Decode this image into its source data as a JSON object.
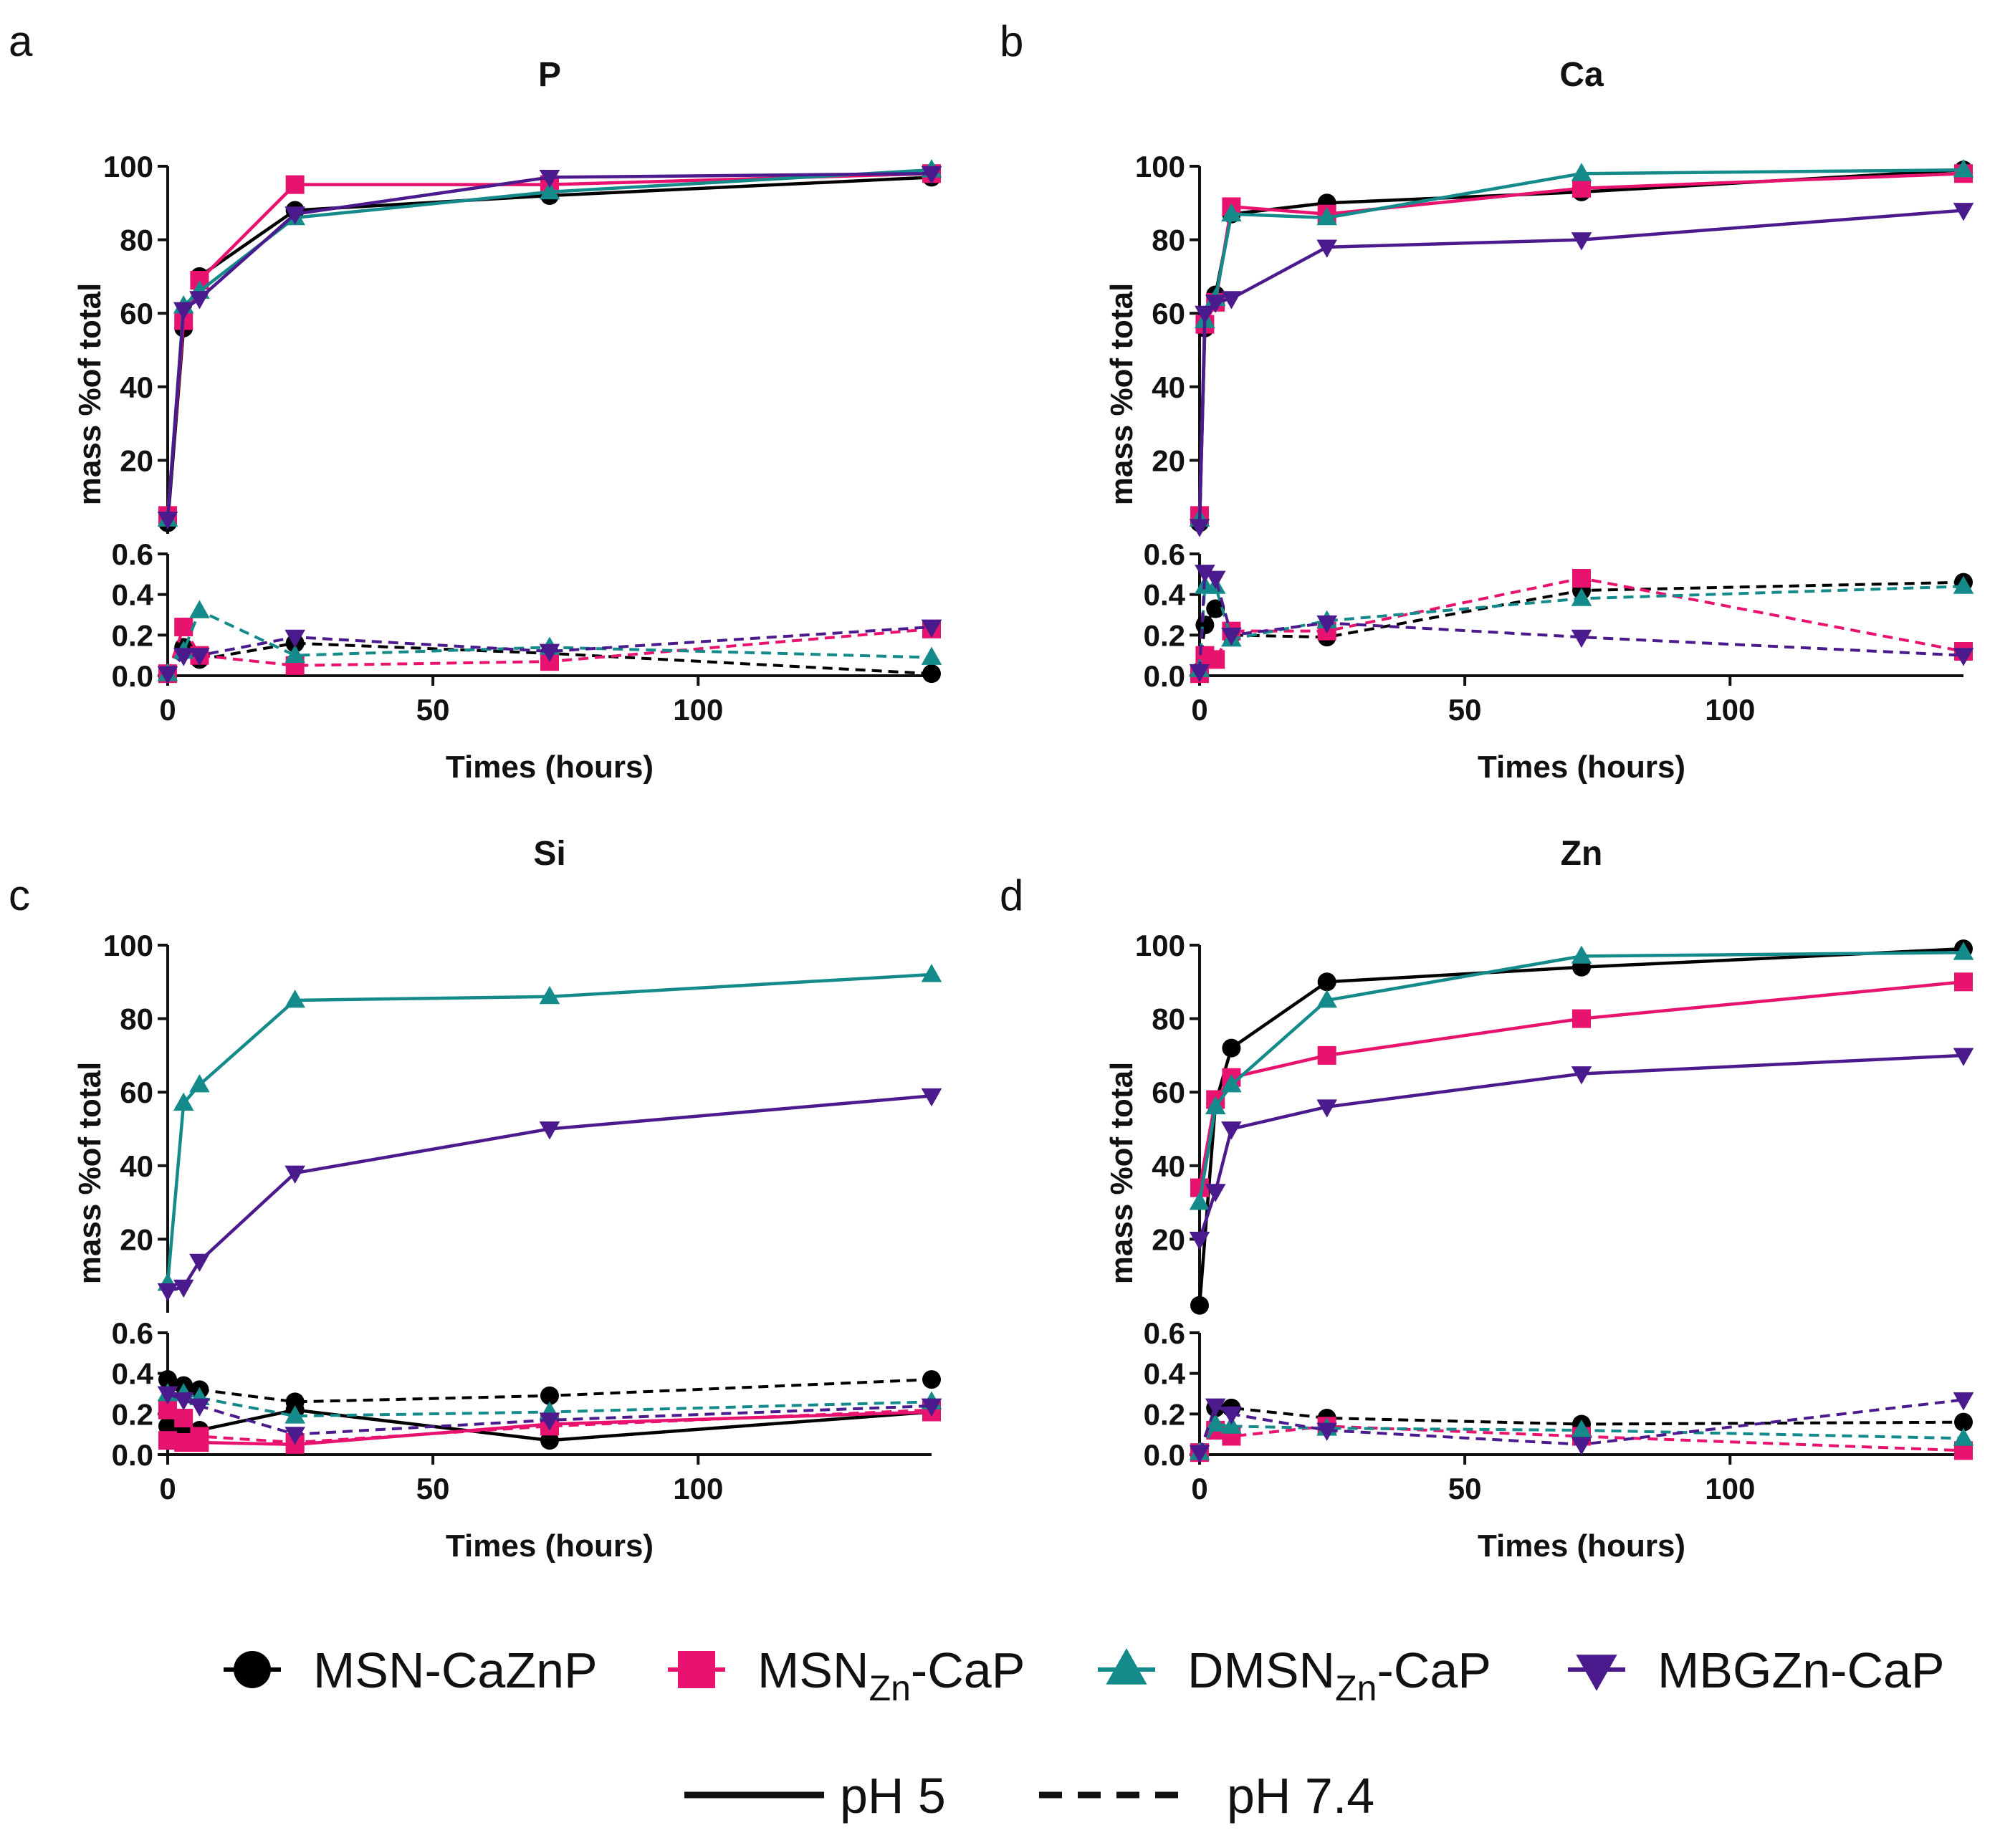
{
  "figure": {
    "colors": {
      "MSN-CaZnP": "#000000",
      "MSNZn-CaP": "#E8136F",
      "DMSNZn-CaP": "#148A8A",
      "MBGZn-CaP": "#4B1A8C"
    },
    "legend": {
      "series": [
        {
          "key": "MSN-CaZnP",
          "label": "MSN-CaZnP",
          "base": "MSN-CaZnP",
          "sub": "",
          "tail": "",
          "marker": "circle"
        },
        {
          "key": "MSNZn-CaP",
          "label": "MSNZn-CaP",
          "base": "MSN",
          "sub": "Zn",
          "tail": "-CaP",
          "marker": "square"
        },
        {
          "key": "DMSNZn-CaP",
          "label": "DMSNZn-CaP",
          "base": "DMSN",
          "sub": "Zn",
          "tail": "-CaP",
          "marker": "triangle-up"
        },
        {
          "key": "MBGZn-CaP",
          "label": "MBGZn-CaP",
          "base": "MBGZn-CaP",
          "sub": "",
          "tail": "",
          "marker": "triangle-down"
        }
      ],
      "ph": [
        {
          "label": "pH 5",
          "style": "solid"
        },
        {
          "label": "pH 7.4",
          "style": "dashed"
        }
      ]
    }
  },
  "chart_data": [
    {
      "panel": "a",
      "title": "P",
      "type": "line",
      "xlabel": "Times (hours)",
      "ylabel": "mass %of total",
      "xlim": [
        0,
        144
      ],
      "xticks": [
        "0",
        "50",
        "100"
      ],
      "ylim_top": [
        0,
        100
      ],
      "yticks_top": [
        "20",
        "40",
        "60",
        "80",
        "100"
      ],
      "ylim_bottom": [
        0,
        0.6
      ],
      "yticks_bottom": [
        "0.0",
        "0.2",
        "0.4",
        "0.6"
      ],
      "x": [
        0,
        3,
        6,
        24,
        72,
        144
      ],
      "series_top": [
        {
          "name": "MSN-CaZnP",
          "ph": "pH 5",
          "values": [
            3,
            56,
            70,
            88,
            92,
            97
          ]
        },
        {
          "name": "MSNZn-CaP",
          "ph": "pH 5",
          "values": [
            5,
            58,
            69,
            95,
            95,
            98
          ]
        },
        {
          "name": "DMSNZn-CaP",
          "ph": "pH 5",
          "values": [
            4,
            62,
            66,
            86,
            93,
            99
          ]
        },
        {
          "name": "MBGZn-CaP",
          "ph": "pH 5",
          "values": [
            4,
            61,
            64,
            87,
            97,
            98
          ]
        }
      ],
      "series_bottom": [
        {
          "name": "MSN-CaZnP",
          "ph": "pH 7.4",
          "values": [
            0.01,
            0.14,
            0.08,
            0.16,
            0.11,
            0.01
          ]
        },
        {
          "name": "MSNZn-CaP",
          "ph": "pH 7.4",
          "values": [
            0.01,
            0.24,
            0.1,
            0.05,
            0.07,
            0.23
          ]
        },
        {
          "name": "DMSNZn-CaP",
          "ph": "pH 7.4",
          "values": [
            0.01,
            0.12,
            0.32,
            0.1,
            0.14,
            0.09
          ]
        },
        {
          "name": "MBGZn-CaP",
          "ph": "pH 7.4",
          "values": [
            0.01,
            0.1,
            0.1,
            0.19,
            0.12,
            0.24
          ]
        }
      ]
    },
    {
      "panel": "b",
      "title": "Ca",
      "type": "line",
      "xlabel": "Times (hours)",
      "ylabel": "mass %of total",
      "xlim": [
        0,
        144
      ],
      "xticks": [
        "0",
        "50",
        "100"
      ],
      "ylim_top": [
        0,
        100
      ],
      "yticks_top": [
        "20",
        "40",
        "60",
        "80",
        "100"
      ],
      "ylim_bottom": [
        0,
        0.6
      ],
      "yticks_bottom": [
        "0.0",
        "0.2",
        "0.4",
        "0.6"
      ],
      "x": [
        0,
        1,
        3,
        6,
        24,
        72,
        144
      ],
      "series_top": [
        {
          "name": "MSN-CaZnP",
          "ph": "pH 5",
          "values": [
            3,
            56,
            65,
            87,
            90,
            93,
            99
          ]
        },
        {
          "name": "MSNZn-CaP",
          "ph": "pH 5",
          "values": [
            5,
            57,
            63,
            89,
            87,
            94,
            98
          ]
        },
        {
          "name": "DMSNZn-CaP",
          "ph": "pH 5",
          "values": [
            4,
            58,
            64,
            87,
            86,
            98,
            99
          ]
        },
        {
          "name": "MBGZn-CaP",
          "ph": "pH 5",
          "values": [
            2,
            60,
            63,
            64,
            78,
            80,
            88
          ]
        }
      ],
      "series_bottom": [
        {
          "name": "MSN-CaZnP",
          "ph": "pH 7.4",
          "values": [
            0.02,
            0.25,
            0.33,
            0.2,
            0.19,
            0.42,
            0.46
          ]
        },
        {
          "name": "MSNZn-CaP",
          "ph": "pH 7.4",
          "values": [
            0.01,
            0.1,
            0.08,
            0.22,
            0.22,
            0.48,
            0.12
          ]
        },
        {
          "name": "DMSNZn-CaP",
          "ph": "pH 7.4",
          "values": [
            0.03,
            0.44,
            0.44,
            0.18,
            0.27,
            0.38,
            0.44
          ]
        },
        {
          "name": "MBGZn-CaP",
          "ph": "pH 7.4",
          "values": [
            0.02,
            0.51,
            0.48,
            0.2,
            0.26,
            0.19,
            0.1
          ]
        }
      ]
    },
    {
      "panel": "c",
      "title": "Si",
      "type": "line",
      "xlabel": "Times (hours)",
      "ylabel": "mass %of total",
      "xlim": [
        0,
        144
      ],
      "xticks": [
        "0",
        "50",
        "100"
      ],
      "ylim_top": [
        0,
        100
      ],
      "yticks_top": [
        "20",
        "40",
        "60",
        "80",
        "100"
      ],
      "ylim_bottom": [
        0,
        0.6
      ],
      "yticks_bottom": [
        "0.0",
        "0.2",
        "0.4",
        "0.6"
      ],
      "x": [
        0,
        3,
        6,
        24,
        72,
        144
      ],
      "series_top": [
        {
          "name": "DMSNZn-CaP",
          "ph": "pH 5",
          "values": [
            8,
            57,
            62,
            85,
            86,
            92
          ]
        },
        {
          "name": "MBGZn-CaP",
          "ph": "pH 5",
          "values": [
            6,
            7,
            14,
            38,
            50,
            59
          ]
        }
      ],
      "series_bottom": [
        {
          "name": "MSN-CaZnP",
          "ph": "pH 5",
          "values": [
            0.14,
            0.13,
            0.12,
            0.22,
            0.07,
            0.21
          ]
        },
        {
          "name": "MSNZn-CaP",
          "ph": "pH 5",
          "values": [
            0.07,
            0.06,
            0.06,
            0.05,
            0.15,
            0.21
          ]
        },
        {
          "name": "MSN-CaZnP",
          "ph": "pH 7.4",
          "values": [
            0.37,
            0.34,
            0.32,
            0.26,
            0.29,
            0.37
          ]
        },
        {
          "name": "MSNZn-CaP",
          "ph": "pH 7.4",
          "values": [
            0.22,
            0.18,
            0.09,
            0.06,
            0.14,
            0.22
          ]
        },
        {
          "name": "DMSNZn-CaP",
          "ph": "pH 7.4",
          "values": [
            0.3,
            0.3,
            0.28,
            0.19,
            0.21,
            0.26
          ]
        },
        {
          "name": "MBGZn-CaP",
          "ph": "pH 7.4",
          "values": [
            0.3,
            0.27,
            0.24,
            0.1,
            0.17,
            0.24
          ]
        }
      ]
    },
    {
      "panel": "d",
      "title": "Zn",
      "type": "line",
      "xlabel": "Times (hours)",
      "ylabel": "mass %of total",
      "xlim": [
        0,
        144
      ],
      "xticks": [
        "0",
        "50",
        "100"
      ],
      "ylim_top": [
        0,
        100
      ],
      "yticks_top": [
        "20",
        "40",
        "60",
        "80",
        "100"
      ],
      "ylim_bottom": [
        0,
        0.6
      ],
      "yticks_bottom": [
        "0.0",
        "0.2",
        "0.4",
        "0.6"
      ],
      "x": [
        0,
        3,
        6,
        24,
        72,
        144
      ],
      "series_top": [
        {
          "name": "MSN-CaZnP",
          "ph": "pH 5",
          "values": [
            2,
            57,
            72,
            90,
            94,
            99
          ]
        },
        {
          "name": "MSNZn-CaP",
          "ph": "pH 5",
          "values": [
            34,
            58,
            64,
            70,
            80,
            90
          ]
        },
        {
          "name": "DMSNZn-CaP",
          "ph": "pH 5",
          "values": [
            30,
            56,
            62,
            85,
            97,
            98
          ]
        },
        {
          "name": "MBGZn-CaP",
          "ph": "pH 5",
          "values": [
            20,
            33,
            50,
            56,
            65,
            70
          ]
        }
      ],
      "series_bottom": [
        {
          "name": "MSN-CaZnP",
          "ph": "pH 7.4",
          "values": [
            0.01,
            0.23,
            0.23,
            0.18,
            0.15,
            0.16
          ]
        },
        {
          "name": "MSNZn-CaP",
          "ph": "pH 7.4",
          "values": [
            0.01,
            0.12,
            0.09,
            0.14,
            0.09,
            0.02
          ]
        },
        {
          "name": "DMSNZn-CaP",
          "ph": "pH 7.4",
          "values": [
            0.01,
            0.15,
            0.14,
            0.13,
            0.12,
            0.08
          ]
        },
        {
          "name": "MBGZn-CaP",
          "ph": "pH 7.4",
          "values": [
            0.01,
            0.24,
            0.2,
            0.12,
            0.05,
            0.27
          ]
        }
      ]
    }
  ]
}
